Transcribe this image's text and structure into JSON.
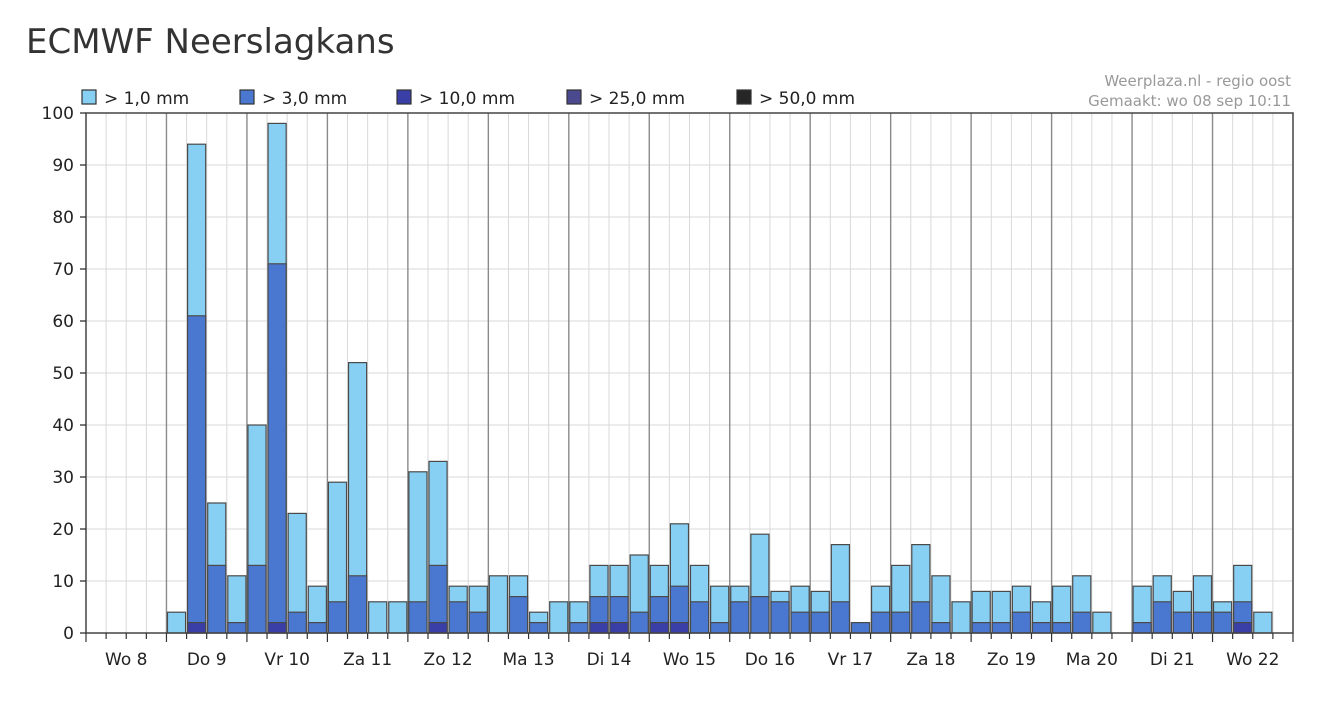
{
  "page_title": "ECMWF Neerslagkans",
  "chart_data": {
    "type": "bar",
    "stacked": false,
    "overlapping": true,
    "credit_line1": "Weerplaza.nl - regio oost",
    "credit_line2": "Gemaakt: wo 08 sep 10:11",
    "ylim": [
      0,
      100
    ],
    "yticks": [
      0,
      10,
      20,
      30,
      40,
      50,
      60,
      70,
      80,
      90,
      100
    ],
    "grid": true,
    "legend_position": "top",
    "day_labels": [
      "Wo 8",
      "Do 9",
      "Vr 10",
      "Za 11",
      "Zo 12",
      "Ma 13",
      "Di 14",
      "Wo 15",
      "Do 16",
      "Vr 17",
      "Za 18",
      "Zo 19",
      "Ma 20",
      "Di 21",
      "Wo 22"
    ],
    "slots_per_day": 4,
    "series": [
      {
        "name": "> 1,0 mm",
        "color": "#87cff3",
        "values": [
          0,
          0,
          0,
          0,
          4,
          94,
          25,
          11,
          40,
          98,
          23,
          9,
          29,
          52,
          6,
          6,
          31,
          33,
          9,
          9,
          11,
          11,
          4,
          6,
          6,
          13,
          13,
          15,
          13,
          21,
          13,
          9,
          9,
          19,
          8,
          9,
          8,
          17,
          2,
          9,
          13,
          17,
          11,
          6,
          8,
          8,
          9,
          6,
          9,
          11,
          4,
          0,
          9,
          11,
          8,
          11,
          6,
          13,
          4
        ]
      },
      {
        "name": "> 3,0 mm",
        "color": "#4a78d0",
        "values": [
          0,
          0,
          0,
          0,
          0,
          61,
          13,
          2,
          13,
          71,
          4,
          2,
          6,
          11,
          0,
          0,
          6,
          13,
          6,
          4,
          0,
          7,
          2,
          0,
          2,
          7,
          7,
          4,
          7,
          9,
          6,
          2,
          6,
          7,
          6,
          4,
          4,
          6,
          2,
          4,
          4,
          6,
          2,
          0,
          2,
          2,
          4,
          2,
          2,
          4,
          0,
          0,
          2,
          6,
          4,
          4,
          4,
          6,
          0
        ]
      },
      {
        "name": "> 10,0 mm",
        "color": "#3a3fa8",
        "values": [
          0,
          0,
          0,
          0,
          0,
          2,
          0,
          0,
          0,
          2,
          0,
          0,
          0,
          0,
          0,
          0,
          0,
          2,
          0,
          0,
          0,
          0,
          0,
          0,
          0,
          2,
          2,
          0,
          2,
          2,
          0,
          0,
          0,
          0,
          0,
          0,
          0,
          0,
          0,
          0,
          0,
          0,
          0,
          0,
          0,
          0,
          0,
          0,
          0,
          0,
          0,
          0,
          0,
          0,
          0,
          0,
          0,
          2,
          0
        ]
      },
      {
        "name": "> 25,0 mm",
        "color": "#4b4a8e",
        "values": []
      },
      {
        "name": "> 50,0 mm",
        "color": "#262626",
        "values": []
      }
    ]
  }
}
